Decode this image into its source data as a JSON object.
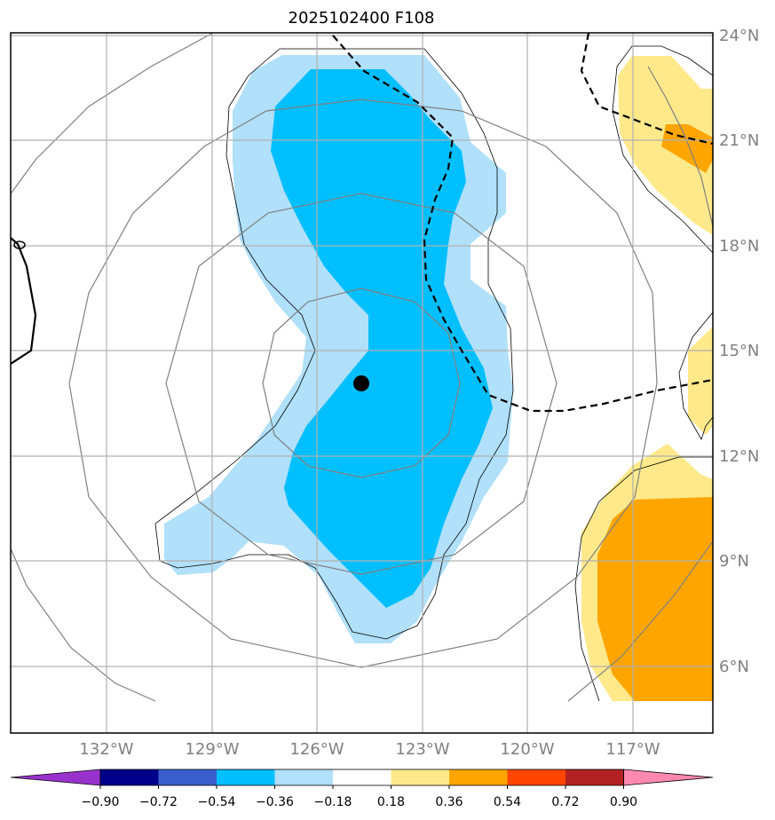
{
  "title": "2025102400 F108",
  "latitude_labels": [
    "24°N",
    "21°N",
    "18°N",
    "15°N",
    "12°N",
    "9°N",
    "6°N"
  ],
  "longitude_labels": [
    "132°W",
    "129°W",
    "126°W",
    "123°W",
    "120°W",
    "117°W"
  ],
  "colorbar": {
    "tick_labels": [
      "−0.90",
      "−0.72",
      "−0.54",
      "−0.36",
      "−0.18",
      "0.18",
      "0.36",
      "0.54",
      "0.72",
      "0.90"
    ],
    "colors": [
      "#9932cc",
      "#00008b",
      "#3a5fcd",
      "#00bfff",
      "#b0e0fa",
      "#ffffff",
      "#ffe98a",
      "#ffa500",
      "#ff4500",
      "#b22222",
      "#ff88b0"
    ]
  },
  "map": {
    "grid": true,
    "storm_center_marker": "filled-black-circle",
    "fill_colors": {
      "light_blue": "#b0e0fa",
      "medium_blue": "#00bfff",
      "light_yellow": "#ffe98a",
      "orange": "#ffa500"
    }
  }
}
